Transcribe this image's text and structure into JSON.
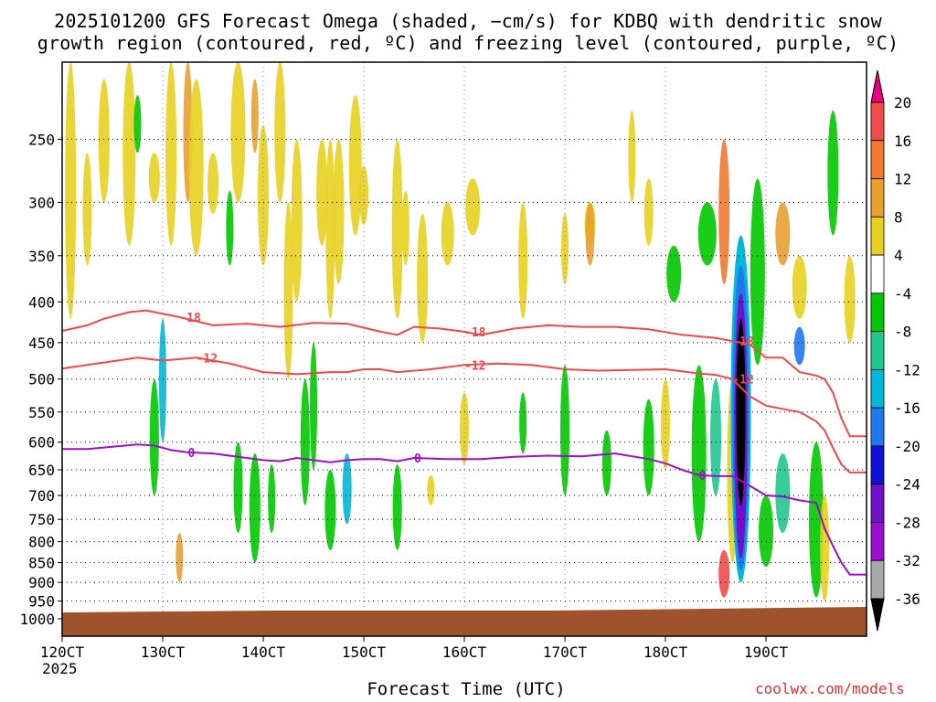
{
  "title_line1": "2025101200 GFS Forecast Omega (shaded, −cm/s) for KDBQ with dendritic snow",
  "title_line2": "growth region (contoured, red, ºC) and freezing level (contoured, purple, ºC)",
  "credit": "coolwx.com/models",
  "chart_data": {
    "type": "heatmap",
    "xlabel": "Forecast Time (UTC)",
    "x_ticks": [
      "120CT",
      "130CT",
      "140CT",
      "150CT",
      "160CT",
      "170CT",
      "180CT",
      "190CT"
    ],
    "x_sublabel": "2025",
    "y_ticks": [
      250,
      300,
      350,
      400,
      450,
      500,
      550,
      600,
      650,
      700,
      750,
      800,
      850,
      900,
      950,
      1000
    ],
    "y_range_hpa": [
      1000,
      200
    ],
    "grid": true,
    "colorbar": {
      "levels": [
        20,
        16,
        12,
        8,
        4,
        -4,
        -8,
        -12,
        -16,
        -20,
        -24,
        -28,
        -32,
        -36
      ],
      "colors": [
        "#e8007c",
        "#f04a4a",
        "#f07a30",
        "#e8a030",
        "#e8d020",
        "#ffffff",
        "#00c800",
        "#20c890",
        "#00b8d8",
        "#1e78f0",
        "#1010d8",
        "#7010c8",
        "#9a10d0",
        "#a8a8a8",
        "#000000"
      ]
    },
    "series": [
      {
        "name": "-18",
        "color": "#f04848",
        "points": [
          [
            0,
            435
          ],
          [
            3,
            428
          ],
          [
            5,
            420
          ],
          [
            8,
            412
          ],
          [
            10,
            410
          ],
          [
            14,
            418
          ],
          [
            18,
            428
          ],
          [
            22,
            426
          ],
          [
            26,
            430
          ],
          [
            30,
            425
          ],
          [
            34,
            426
          ],
          [
            38,
            436
          ],
          [
            40,
            440
          ],
          [
            42,
            430
          ],
          [
            45,
            432
          ],
          [
            48,
            436
          ],
          [
            50,
            440
          ],
          [
            54,
            432
          ],
          [
            58,
            428
          ],
          [
            62,
            430
          ],
          [
            66,
            430
          ],
          [
            70,
            433
          ],
          [
            74,
            440
          ],
          [
            78,
            444
          ],
          [
            80,
            448
          ],
          [
            82,
            452
          ],
          [
            84,
            470
          ],
          [
            86,
            470
          ],
          [
            88,
            490
          ],
          [
            90,
            495
          ],
          [
            91,
            500
          ],
          [
            92,
            520
          ],
          [
            93,
            560
          ],
          [
            94,
            590
          ],
          [
            96,
            590
          ]
        ]
      },
      {
        "name": "-12",
        "color": "#f04848",
        "points": [
          [
            0,
            485
          ],
          [
            3,
            480
          ],
          [
            6,
            475
          ],
          [
            9,
            470
          ],
          [
            12,
            474
          ],
          [
            16,
            470
          ],
          [
            20,
            478
          ],
          [
            24,
            490
          ],
          [
            28,
            493
          ],
          [
            32,
            490
          ],
          [
            34,
            490
          ],
          [
            36,
            486
          ],
          [
            38,
            486
          ],
          [
            40,
            490
          ],
          [
            44,
            486
          ],
          [
            48,
            480
          ],
          [
            52,
            478
          ],
          [
            56,
            480
          ],
          [
            60,
            486
          ],
          [
            64,
            488
          ],
          [
            68,
            487
          ],
          [
            72,
            486
          ],
          [
            76,
            492
          ],
          [
            78,
            494
          ],
          [
            80,
            500
          ],
          [
            82,
            525
          ],
          [
            84,
            540
          ],
          [
            86,
            545
          ],
          [
            88,
            550
          ],
          [
            90,
            565
          ],
          [
            91,
            580
          ],
          [
            92,
            610
          ],
          [
            93,
            640
          ],
          [
            94,
            655
          ],
          [
            96,
            655
          ]
        ]
      },
      {
        "name": "0",
        "color": "#9b10c8",
        "points": [
          [
            0,
            612
          ],
          [
            3,
            612
          ],
          [
            6,
            608
          ],
          [
            9,
            604
          ],
          [
            11,
            606
          ],
          [
            13,
            614
          ],
          [
            15,
            618
          ],
          [
            18,
            620
          ],
          [
            21,
            626
          ],
          [
            24,
            632
          ],
          [
            26,
            634
          ],
          [
            28,
            628
          ],
          [
            30,
            632
          ],
          [
            32,
            636
          ],
          [
            34,
            632
          ],
          [
            36,
            630
          ],
          [
            38,
            630
          ],
          [
            40,
            634
          ],
          [
            42,
            628
          ],
          [
            46,
            630
          ],
          [
            50,
            630
          ],
          [
            54,
            626
          ],
          [
            58,
            624
          ],
          [
            62,
            625
          ],
          [
            66,
            620
          ],
          [
            70,
            630
          ],
          [
            72,
            638
          ],
          [
            74,
            650
          ],
          [
            76,
            660
          ],
          [
            78,
            662
          ],
          [
            80,
            662
          ],
          [
            82,
            680
          ],
          [
            84,
            700
          ],
          [
            86,
            702
          ],
          [
            88,
            710
          ],
          [
            90,
            715
          ],
          [
            91,
            770
          ],
          [
            92,
            810
          ],
          [
            93,
            850
          ],
          [
            94,
            880
          ],
          [
            96,
            880
          ]
        ]
      }
    ]
  }
}
